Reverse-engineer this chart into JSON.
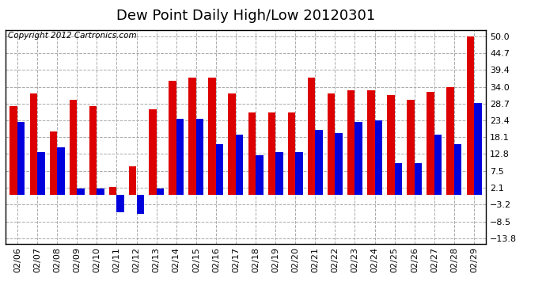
{
  "title": "Dew Point Daily High/Low 20120301",
  "copyright": "Copyright 2012 Cartronics.com",
  "dates": [
    "02/06",
    "02/07",
    "02/08",
    "02/09",
    "02/10",
    "02/11",
    "02/12",
    "02/13",
    "02/14",
    "02/15",
    "02/16",
    "02/17",
    "02/18",
    "02/19",
    "02/20",
    "02/21",
    "02/22",
    "02/23",
    "02/24",
    "02/25",
    "02/26",
    "02/27",
    "02/28",
    "02/29"
  ],
  "highs": [
    28.0,
    32.0,
    20.0,
    30.0,
    28.0,
    2.5,
    9.0,
    27.0,
    36.0,
    37.0,
    37.0,
    32.0,
    26.0,
    26.0,
    26.0,
    37.0,
    32.0,
    33.0,
    33.0,
    31.5,
    30.0,
    32.5,
    34.0,
    50.0
  ],
  "lows": [
    23.0,
    13.5,
    15.0,
    2.0,
    2.0,
    -5.5,
    -6.0,
    2.0,
    24.0,
    24.0,
    16.0,
    19.0,
    12.5,
    13.5,
    13.5,
    20.5,
    19.5,
    23.0,
    23.5,
    10.0,
    10.0,
    19.0,
    16.0,
    29.0
  ],
  "bar_color_high": "#dd0000",
  "bar_color_low": "#0000dd",
  "bg_color": "#ffffff",
  "plot_bg_color": "#ffffff",
  "grid_color": "#aaaaaa",
  "yticks": [
    50.0,
    44.7,
    39.4,
    34.0,
    28.7,
    23.4,
    18.1,
    12.8,
    7.5,
    2.1,
    -3.2,
    -8.5,
    -13.8
  ],
  "ylim": [
    -15.5,
    52.0
  ],
  "title_fontsize": 13,
  "axis_fontsize": 8,
  "copyright_fontsize": 7.5,
  "bar_width": 0.38
}
